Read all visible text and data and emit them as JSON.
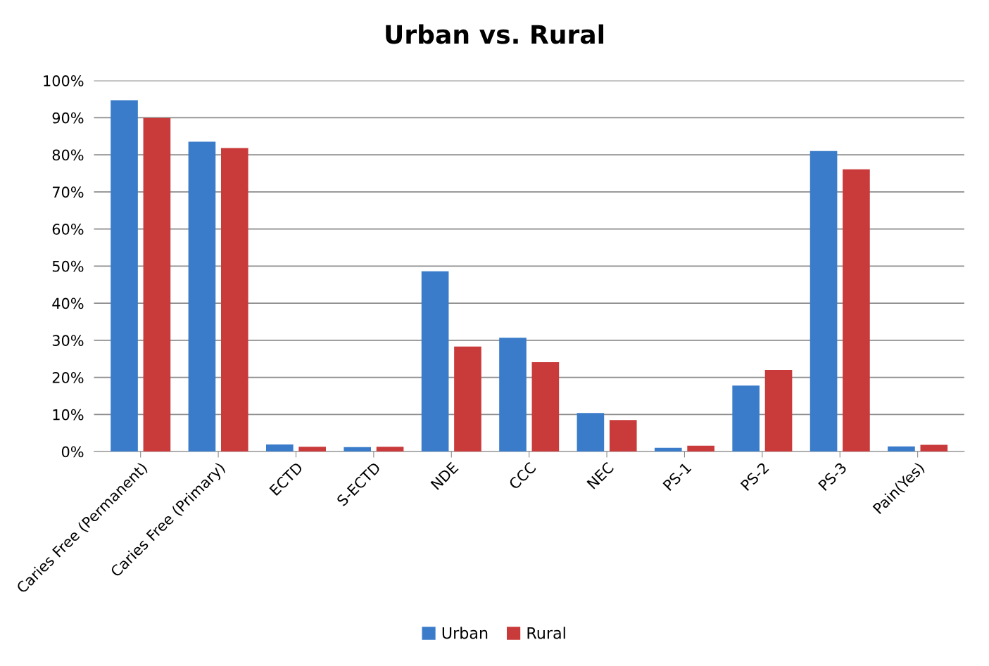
{
  "chart_data": {
    "type": "bar",
    "title": "Urban vs. Rural",
    "categories": [
      "Caries Free (Permanent)",
      "Caries Free (Primary)",
      "ECTD",
      "S-ECTD",
      "NDE",
      "CCC",
      "NEC",
      "PS-1",
      "PS-2",
      "PS-3",
      "Pain(Yes)"
    ],
    "series": [
      {
        "name": "Urban",
        "color": "#3a7cc9",
        "values": [
          94.7,
          83.5,
          1.9,
          1.2,
          48.6,
          30.7,
          10.4,
          1.0,
          17.8,
          81.0,
          1.4
        ]
      },
      {
        "name": "Rural",
        "color": "#c93a3a",
        "values": [
          89.9,
          81.8,
          1.3,
          1.3,
          28.3,
          24.1,
          8.5,
          1.6,
          22.0,
          76.1,
          1.8
        ]
      }
    ],
    "ylim": [
      0,
      100
    ],
    "yticks": [
      {
        "value": 0,
        "label": "0%"
      },
      {
        "value": 10,
        "label": "10%"
      },
      {
        "value": 20,
        "label": "20%"
      },
      {
        "value": 30,
        "label": "30%"
      },
      {
        "value": 40,
        "label": "40%"
      },
      {
        "value": 50,
        "label": "50%"
      },
      {
        "value": 60,
        "label": "60%"
      },
      {
        "value": 70,
        "label": "70%"
      },
      {
        "value": 80,
        "label": "80%"
      },
      {
        "value": 90,
        "label": "90%"
      },
      {
        "value": 100,
        "label": "100%"
      }
    ],
    "grid": "y",
    "legend": "bottom"
  }
}
